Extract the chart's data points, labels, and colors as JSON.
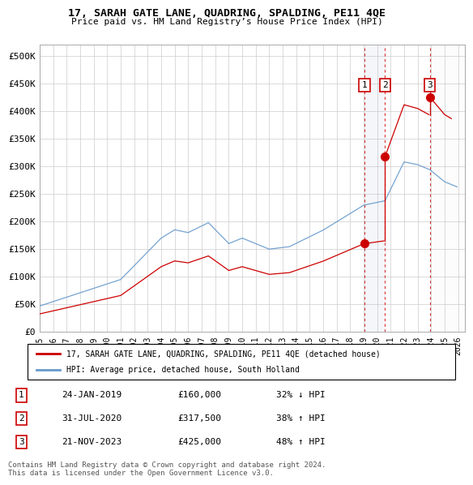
{
  "title": "17, SARAH GATE LANE, QUADRING, SPALDING, PE11 4QE",
  "subtitle": "Price paid vs. HM Land Registry’s House Price Index (HPI)",
  "ylim": [
    0,
    520000
  ],
  "yticks": [
    0,
    50000,
    100000,
    150000,
    200000,
    250000,
    300000,
    350000,
    400000,
    450000,
    500000
  ],
  "xlim_start": 1995.0,
  "xlim_end": 2026.5,
  "legend_label_red": "17, SARAH GATE LANE, QUADRING, SPALDING, PE11 4QE (detached house)",
  "legend_label_blue": "HPI: Average price, detached house, South Holland",
  "footer": "Contains HM Land Registry data © Crown copyright and database right 2024.\nThis data is licensed under the Open Government Licence v3.0.",
  "transactions": [
    {
      "num": 1,
      "date": "24-JAN-2019",
      "price": "£160,000",
      "change": "32% ↓ HPI",
      "year": 2019.07
    },
    {
      "num": 2,
      "date": "31-JUL-2020",
      "price": "£317,500",
      "change": "38% ↑ HPI",
      "year": 2020.58
    },
    {
      "num": 3,
      "date": "21-NOV-2023",
      "price": "£425,000",
      "change": "48% ↑ HPI",
      "year": 2023.9
    }
  ],
  "transaction_values": [
    160000,
    317500,
    425000
  ],
  "hpi_color": "#6699cc",
  "price_color": "#cc0000",
  "shade_x1": 2019.07,
  "shade_x2": 2020.58,
  "hatch_x1": 2023.9,
  "hatch_x2": 2026.5
}
